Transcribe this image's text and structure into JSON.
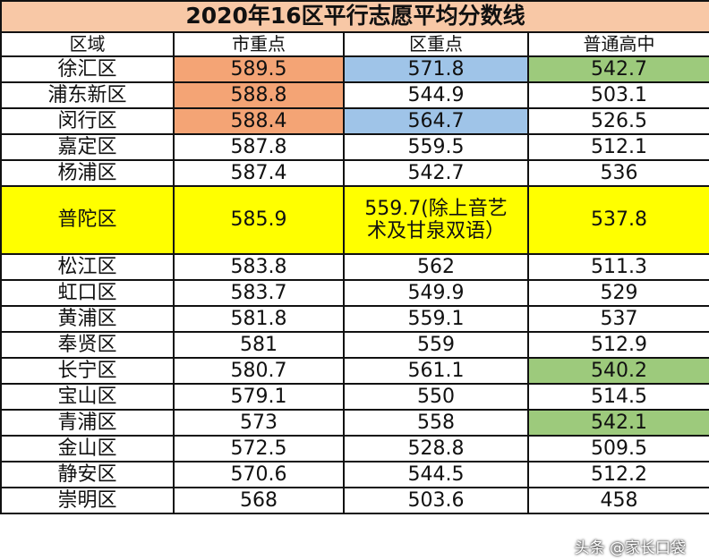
{
  "title": "2020年16区平行志愿平均分数线",
  "headers": [
    "区域",
    "市重点",
    "区重点",
    "普通高中"
  ],
  "colors": {
    "title_bg": "#f8c8a6",
    "orange": "#f4a475",
    "blue": "#9fc4e8",
    "green": "#9dca7c",
    "yellow": "#ffff00"
  },
  "rows": [
    {
      "district": "徐汇区",
      "city_key": "589.5",
      "district_key": "571.8",
      "general": "542.7",
      "hl": [
        "orange",
        "blue",
        "green"
      ]
    },
    {
      "district": "浦东新区",
      "city_key": "588.8",
      "district_key": "544.9",
      "general": "503.1",
      "hl": [
        "orange",
        "",
        ""
      ]
    },
    {
      "district": "闵行区",
      "city_key": "588.4",
      "district_key": "564.7",
      "general": "526.5",
      "hl": [
        "orange",
        "blue",
        ""
      ]
    },
    {
      "district": "嘉定区",
      "city_key": "587.8",
      "district_key": "559.5",
      "general": "512.1",
      "hl": [
        "",
        "",
        ""
      ]
    },
    {
      "district": "杨浦区",
      "city_key": "587.4",
      "district_key": "542.7",
      "general": "536",
      "hl": [
        "",
        "",
        ""
      ]
    },
    {
      "district": "普陀区",
      "city_key": "585.9",
      "district_key": "559.7(除上音艺术及甘泉双语）",
      "general": "537.8",
      "hl": [
        "",
        "",
        ""
      ],
      "highlight_row": "yellow"
    },
    {
      "district": "松江区",
      "city_key": "583.8",
      "district_key": "562",
      "general": "511.3",
      "hl": [
        "",
        "",
        ""
      ]
    },
    {
      "district": "虹口区",
      "city_key": "583.7",
      "district_key": "549.9",
      "general": "529",
      "hl": [
        "",
        "",
        ""
      ]
    },
    {
      "district": "黄浦区",
      "city_key": "581.8",
      "district_key": "559.1",
      "general": "537",
      "hl": [
        "",
        "",
        ""
      ]
    },
    {
      "district": "奉贤区",
      "city_key": "581",
      "district_key": "559",
      "general": "512.9",
      "hl": [
        "",
        "",
        ""
      ]
    },
    {
      "district": "长宁区",
      "city_key": "580.7",
      "district_key": "561.1",
      "general": "540.2",
      "hl": [
        "",
        "",
        "green"
      ]
    },
    {
      "district": "宝山区",
      "city_key": "579.1",
      "district_key": "550",
      "general": "514.5",
      "hl": [
        "",
        "",
        ""
      ]
    },
    {
      "district": "青浦区",
      "city_key": "573",
      "district_key": "558",
      "general": "542.1",
      "hl": [
        "",
        "",
        "green"
      ]
    },
    {
      "district": "金山区",
      "city_key": "572.5",
      "district_key": "528.8",
      "general": "509.5",
      "hl": [
        "",
        "",
        ""
      ]
    },
    {
      "district": "静安区",
      "city_key": "570.6",
      "district_key": "544.5",
      "general": "512.2",
      "hl": [
        "",
        "",
        ""
      ]
    },
    {
      "district": "崇明区",
      "city_key": "568",
      "district_key": "503.6",
      "general": "458",
      "hl": [
        "",
        "",
        ""
      ]
    }
  ],
  "watermark": "头条 @家长口袋"
}
